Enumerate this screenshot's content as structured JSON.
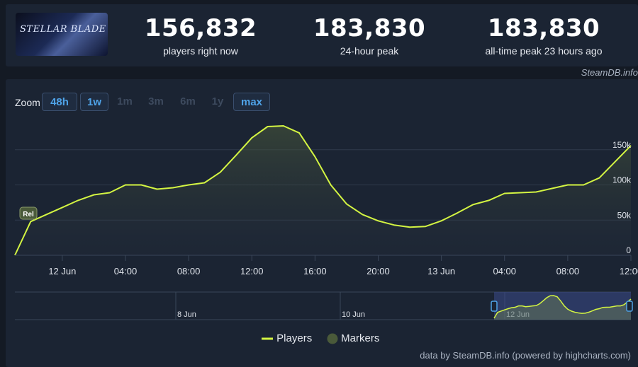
{
  "header": {
    "logo_text": "STELLAR BLADE",
    "stats": [
      {
        "value": "156,832",
        "label": "players right now"
      },
      {
        "value": "183,830",
        "label": "24-hour peak"
      },
      {
        "value": "183,830",
        "label": "all-time peak 23 hours ago"
      }
    ],
    "credit": "SteamDB.info"
  },
  "zoom": {
    "label": "Zoom",
    "buttons": [
      {
        "label": "48h",
        "active": true
      },
      {
        "label": "1w",
        "active": true
      },
      {
        "label": "1m",
        "active": false
      },
      {
        "label": "3m",
        "active": false
      },
      {
        "label": "6m",
        "active": false
      },
      {
        "label": "1y",
        "active": false
      },
      {
        "label": "max",
        "active": true
      }
    ]
  },
  "chart_data": {
    "type": "area",
    "x_tick_labels": [
      "12 Jun",
      "04:00",
      "08:00",
      "12:00",
      "16:00",
      "20:00",
      "13 Jun",
      "04:00",
      "08:00",
      "12:00"
    ],
    "y_tick_labels": [
      "0",
      "50k",
      "100k",
      "150k"
    ],
    "ylim": [
      0,
      190000
    ],
    "series": [
      {
        "name": "Players",
        "color": "#d4f542",
        "x_hours": [
          -3,
          -2,
          -1,
          0,
          1,
          2,
          3,
          4,
          5,
          6,
          7,
          8,
          9,
          10,
          11,
          12,
          13,
          14,
          15,
          16,
          17,
          18,
          19,
          20,
          21,
          22,
          23,
          24,
          25,
          26,
          27,
          28,
          29,
          30,
          31,
          32,
          33,
          34,
          35,
          36
        ],
        "values": [
          0,
          48000,
          58000,
          68000,
          78000,
          86000,
          89000,
          100000,
          100000,
          94000,
          96000,
          100000,
          103000,
          118000,
          142000,
          167000,
          183000,
          184000,
          174000,
          140000,
          100000,
          73000,
          58000,
          49000,
          43000,
          40000,
          41000,
          49000,
          60000,
          72000,
          78000,
          88000,
          89000,
          90000,
          95000,
          100000,
          100000,
          110000,
          133000,
          156000
        ]
      }
    ],
    "markers": [
      {
        "label": "Rel",
        "x_hour": -3
      }
    ],
    "navigator_labels": [
      "8 Jun",
      "10 Jun",
      "12 Jun"
    ],
    "legend": [
      "Players",
      "Markers"
    ],
    "legend_colors": {
      "Players": "#d4f542",
      "Markers": "#4a5a3a"
    }
  },
  "footer": "data by SteamDB.info (powered by highcharts.com)"
}
